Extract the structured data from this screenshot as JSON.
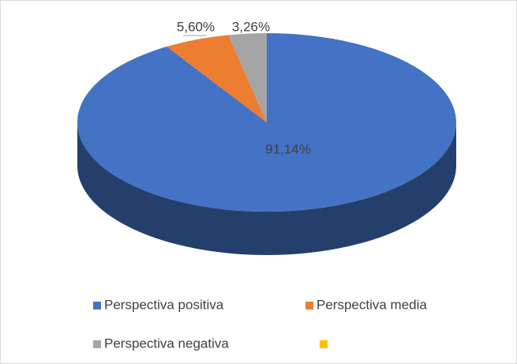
{
  "chart_data": {
    "type": "pie3d",
    "categories": [
      "Perspectiva positiva",
      "Perspectiva media",
      "Perspectiva negativa",
      null
    ],
    "values": [
      91.14,
      5.6,
      3.26,
      0
    ],
    "value_labels": [
      "91,14%",
      "5,60%",
      "3,26%",
      null
    ],
    "colors": [
      "#4472c4",
      "#ed7d31",
      "#a5a5a5",
      "#ffc000"
    ],
    "legend": "bottom"
  }
}
